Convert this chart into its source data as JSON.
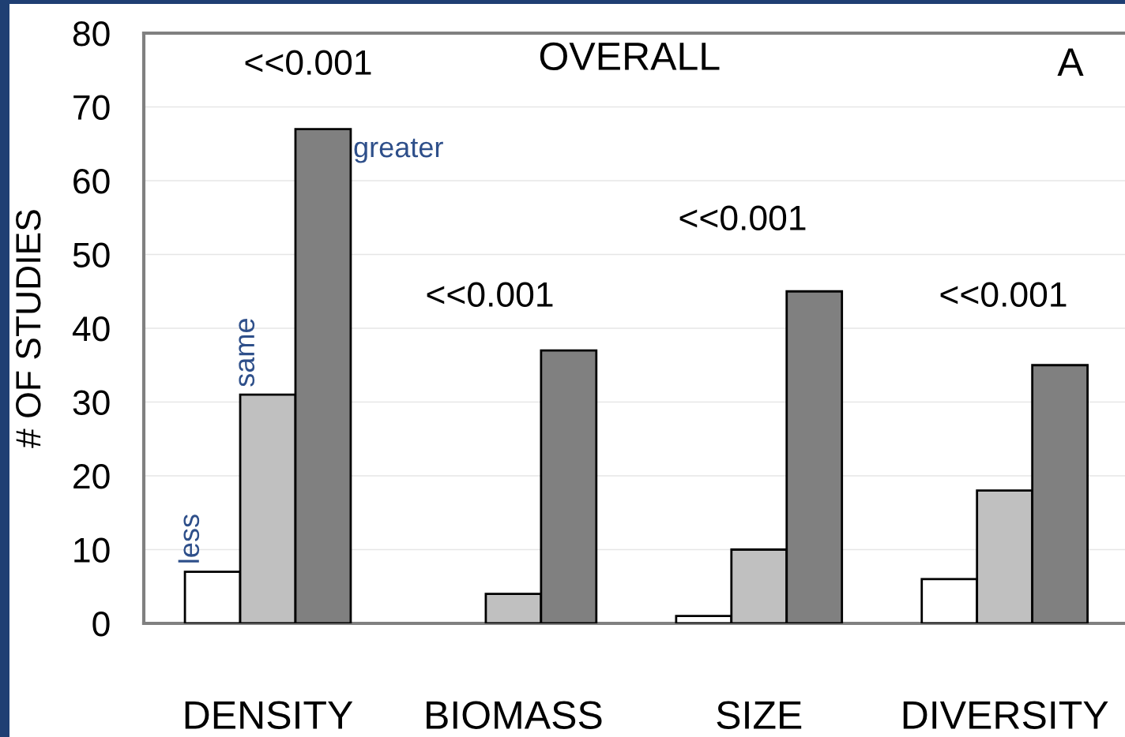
{
  "chart_data": {
    "type": "bar",
    "title": "OVERALL",
    "ylabel": "# OF STUDIES",
    "categories": [
      "DENSITY",
      "BIOMASS",
      "SIZE",
      "DIVERSITY"
    ],
    "series": [
      {
        "name": "less",
        "color": "#ffffff",
        "values": [
          7,
          0,
          1,
          6
        ]
      },
      {
        "name": "same",
        "color": "#c0c0c0",
        "values": [
          31,
          4,
          10,
          18
        ]
      },
      {
        "name": "greater",
        "color": "#808080",
        "values": [
          67,
          37,
          45,
          35
        ]
      }
    ],
    "ylim": [
      0,
      80
    ],
    "yticks": [
      0,
      10,
      20,
      30,
      40,
      50,
      60,
      70,
      80
    ],
    "grid": "y",
    "legend": false,
    "annotations": [
      "<<0.001",
      "<<0.001",
      "<<0.001",
      "<<0.001",
      "A"
    ]
  }
}
